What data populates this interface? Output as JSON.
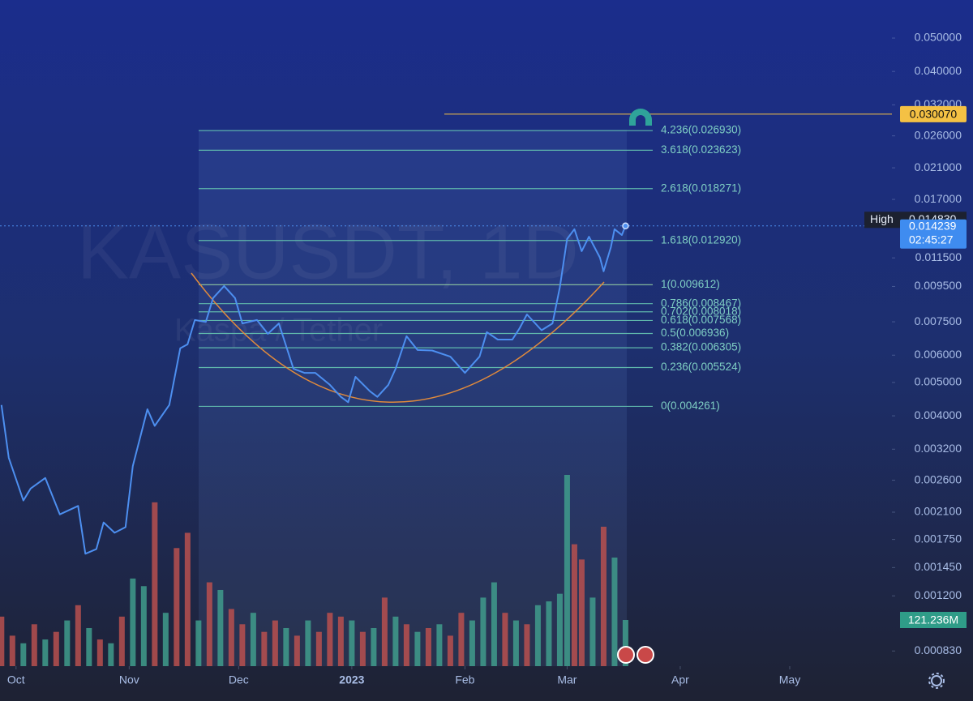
{
  "chart_data": {
    "type": "line",
    "watermark": "KASUSDT, 1D",
    "watermark_sub": "Kaspa / Tether",
    "log_scale": true,
    "color": "#4d8ff0",
    "x": [
      -4,
      -2,
      2,
      4,
      8,
      12,
      17,
      19,
      22,
      24,
      27,
      30,
      32,
      36,
      38,
      42,
      45,
      47,
      49,
      52,
      54,
      57,
      60,
      62,
      66,
      69,
      72,
      76,
      79,
      82,
      86,
      89,
      91,
      93,
      97,
      99,
      102,
      104,
      107,
      110,
      114,
      119,
      123,
      127,
      129,
      132,
      136,
      138,
      140,
      144,
      147,
      149,
      151,
      153,
      155,
      157,
      160,
      161,
      163,
      164,
      166,
      167
    ],
    "values": [
      0.0043,
      0.00302,
      0.00227,
      0.00246,
      0.00264,
      0.00207,
      0.00219,
      0.00159,
      0.00164,
      0.00196,
      0.00183,
      0.0019,
      0.00286,
      0.00418,
      0.00374,
      0.0043,
      0.00628,
      0.00645,
      0.00759,
      0.00749,
      0.00879,
      0.00953,
      0.00879,
      0.00742,
      0.00759,
      0.00692,
      0.00742,
      0.00548,
      0.00533,
      0.00533,
      0.00492,
      0.00454,
      0.00438,
      0.00519,
      0.00471,
      0.00454,
      0.00492,
      0.00548,
      0.00681,
      0.00621,
      0.00619,
      0.00594,
      0.00533,
      0.00594,
      0.007,
      0.00666,
      0.00666,
      0.00719,
      0.00788,
      0.00709,
      0.00742,
      0.00943,
      0.01305,
      0.01393,
      0.01203,
      0.01325,
      0.01152,
      0.01051,
      0.01235,
      0.01393,
      0.0134,
      0.014239
    ],
    "xlim": [
      -4.4,
      240
    ],
    "xticks": [
      {
        "value": 0,
        "label": "Oct"
      },
      {
        "value": 31,
        "label": "Nov"
      },
      {
        "value": 61,
        "label": "Dec"
      },
      {
        "value": 92,
        "label": "2023"
      },
      {
        "value": 123,
        "label": "Feb"
      },
      {
        "value": 151,
        "label": "Mar"
      },
      {
        "value": 182,
        "label": "Apr"
      },
      {
        "value": 212,
        "label": "May"
      }
    ],
    "ylim": [
      0.00075,
      0.0645
    ],
    "yticks": [
      {
        "value": 0.05,
        "label": "0.050000"
      },
      {
        "value": 0.04,
        "label": "0.040000"
      },
      {
        "value": 0.032,
        "label": "0.032000"
      },
      {
        "value": 0.026,
        "label": "0.026000"
      },
      {
        "value": 0.021,
        "label": "0.021000"
      },
      {
        "value": 0.017,
        "label": "0.017000"
      },
      {
        "value": 0.0115,
        "label": "0.011500"
      },
      {
        "value": 0.0095,
        "label": "0.009500"
      },
      {
        "value": 0.0075,
        "label": "0.007500"
      },
      {
        "value": 0.006,
        "label": "0.006000"
      },
      {
        "value": 0.005,
        "label": "0.005000"
      },
      {
        "value": 0.004,
        "label": "0.004000"
      },
      {
        "value": 0.0032,
        "label": "0.003200"
      },
      {
        "value": 0.0026,
        "label": "0.002600"
      },
      {
        "value": 0.0021,
        "label": "0.002100"
      },
      {
        "value": 0.00175,
        "label": "0.001750"
      },
      {
        "value": 0.00145,
        "label": "0.001450"
      },
      {
        "value": 0.0012,
        "label": "0.001200"
      },
      {
        "value": 0.00083,
        "label": "0.000830"
      }
    ],
    "fib_levels": [
      {
        "value": 0.02693,
        "label": "4.236(0.026930)"
      },
      {
        "value": 0.023623,
        "label": "3.618(0.023623)"
      },
      {
        "value": 0.018271,
        "label": "2.618(0.018271)"
      },
      {
        "value": 0.01292,
        "label": "1.618(0.012920)"
      },
      {
        "value": 0.009612,
        "label": "1(0.009612)"
      },
      {
        "value": 0.008467,
        "label": "0.786(0.008467)"
      },
      {
        "value": 0.008018,
        "label": "0.702(0.008018)"
      },
      {
        "value": 0.007568,
        "label": "0.618(0.007568)"
      },
      {
        "value": 0.006936,
        "label": "0.5(0.006936)"
      },
      {
        "value": 0.006305,
        "label": "0.382(0.006305)"
      },
      {
        "value": 0.005524,
        "label": "0.236(0.005524)"
      },
      {
        "value": 0.004261,
        "label": "0(0.004261)"
      }
    ],
    "alert_line": {
      "value": 0.03007,
      "label": "0.030070"
    },
    "high": {
      "text": "High",
      "value": 0.01483,
      "label": "0.014830"
    },
    "last_price": {
      "value": 0.014239,
      "label": "0.014239",
      "countdown": "02:45:27"
    },
    "volume": {
      "x": [
        -4,
        -1,
        2,
        5,
        8,
        11,
        14,
        17,
        20,
        23,
        26,
        29,
        32,
        35,
        38,
        41,
        44,
        47,
        50,
        53,
        56,
        59,
        62,
        65,
        68,
        71,
        74,
        77,
        80,
        83,
        86,
        89,
        92,
        95,
        98,
        101,
        104,
        107,
        110,
        113,
        116,
        119,
        122,
        125,
        128,
        131,
        134,
        137,
        140,
        143,
        146,
        149,
        151,
        153,
        155,
        158,
        161,
        164,
        167
      ],
      "values": [
        130,
        80,
        60,
        110,
        70,
        90,
        120,
        160,
        100,
        70,
        60,
        130,
        230,
        210,
        430,
        140,
        310,
        350,
        120,
        220,
        200,
        150,
        110,
        140,
        90,
        120,
        100,
        80,
        120,
        90,
        140,
        130,
        120,
        90,
        100,
        180,
        130,
        110,
        90,
        100,
        110,
        80,
        140,
        120,
        180,
        220,
        140,
        120,
        110,
        160,
        170,
        190,
        502,
        320,
        280,
        180,
        366,
        285,
        121.236
      ],
      "directions": [
        -1,
        -1,
        1,
        -1,
        1,
        -1,
        1,
        -1,
        1,
        -1,
        1,
        -1,
        1,
        1,
        -1,
        1,
        -1,
        -1,
        1,
        -1,
        1,
        -1,
        -1,
        1,
        -1,
        -1,
        1,
        -1,
        1,
        -1,
        -1,
        -1,
        1,
        -1,
        1,
        -1,
        1,
        -1,
        1,
        -1,
        1,
        -1,
        -1,
        1,
        1,
        1,
        -1,
        1,
        -1,
        1,
        1,
        1,
        1,
        -1,
        -1,
        1,
        -1,
        1,
        1
      ],
      "up_color": "#3f9c8c",
      "down_color": "#b9504f",
      "last": {
        "value": 121.236,
        "label": "121.236M"
      }
    }
  }
}
